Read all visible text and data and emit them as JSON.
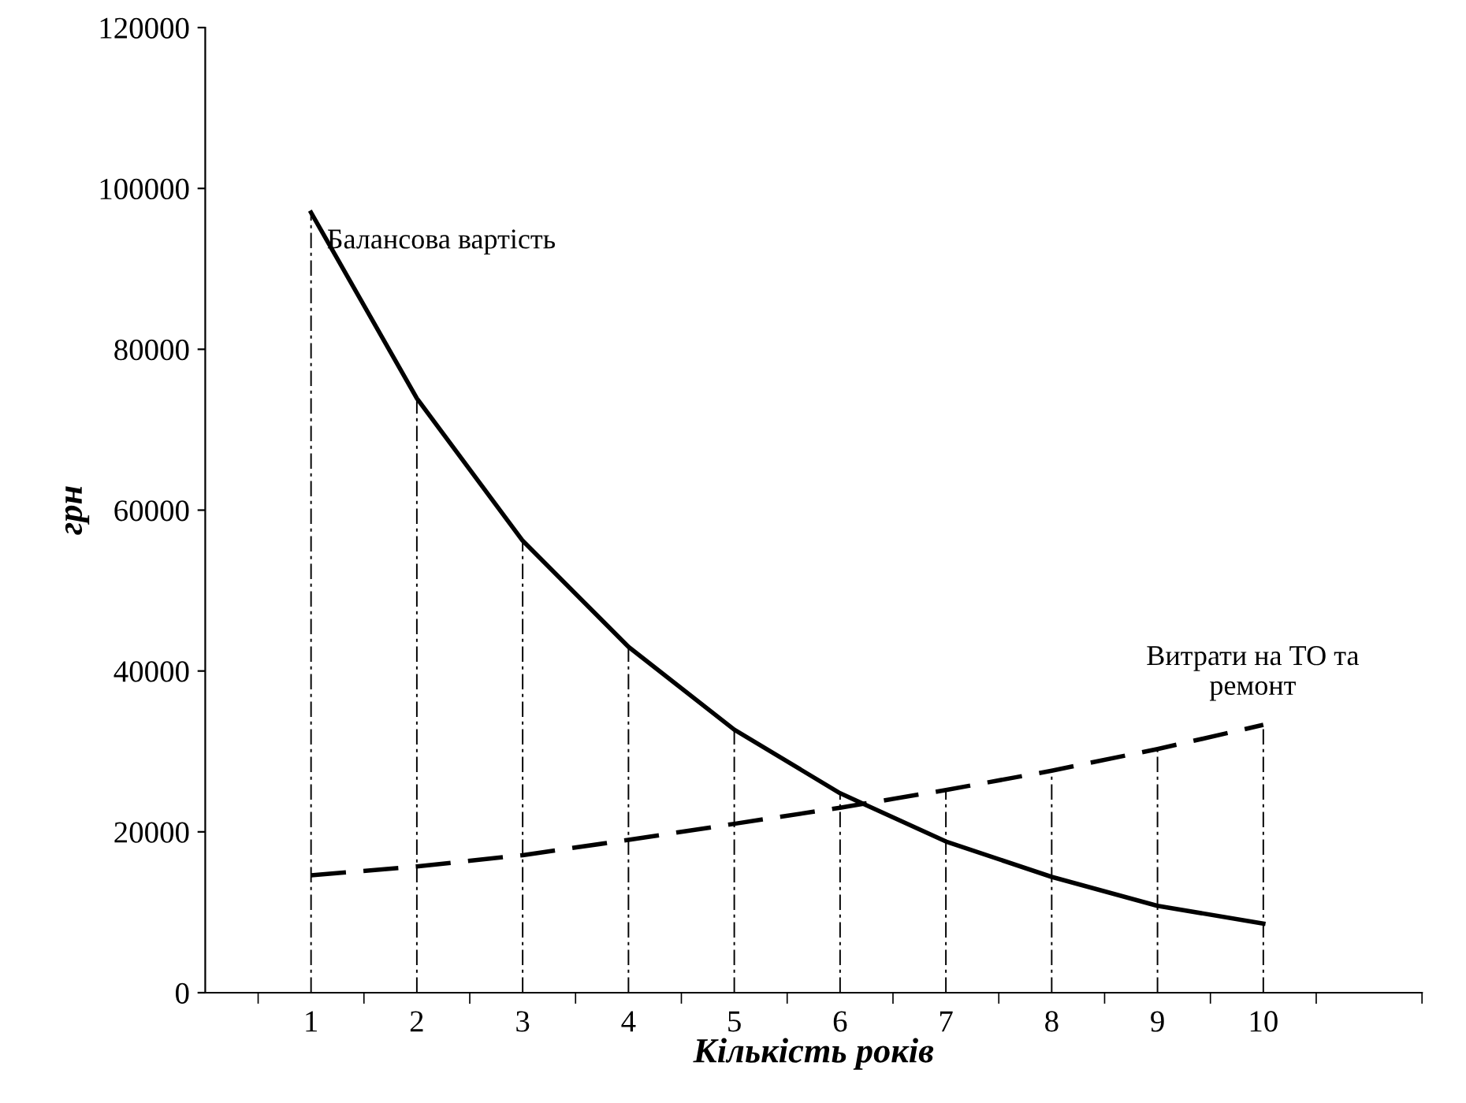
{
  "chart_data": {
    "type": "line",
    "xlabel": "Кількість років",
    "ylabel": "грн",
    "categories": [
      "1",
      "2",
      "3",
      "4",
      "5",
      "6",
      "7",
      "8",
      "9",
      "10"
    ],
    "series": [
      {
        "color": "#000000",
        "line_style": "solid",
        "values": [
          97000,
          73900,
          56200,
          43000,
          32700,
          24800,
          18800,
          14400,
          10800,
          8600
        ]
      },
      {
        "color": "#000000",
        "line_style": "dashed",
        "values": [
          14600,
          15700,
          17100,
          19000,
          21000,
          23000,
          25200,
          27600,
          30300,
          33300
        ]
      }
    ],
    "ylim": [
      0,
      120000
    ],
    "yticks": [
      0,
      20000,
      40000,
      60000,
      80000,
      100000,
      120000
    ],
    "annotations": [
      {
        "text": "Балансова вартість",
        "x": "1",
        "y": 97000
      },
      {
        "text": "Витрати на ТО та\nремонт",
        "x": "10",
        "y": 33300
      }
    ],
    "ref_lines": [
      {
        "axis": "x",
        "value": "1",
        "line_style": "dashed"
      },
      {
        "axis": "x",
        "value": "2",
        "line_style": "dashed"
      },
      {
        "axis": "x",
        "value": "3",
        "line_style": "dashed"
      },
      {
        "axis": "x",
        "value": "4",
        "line_style": "dashed"
      },
      {
        "axis": "x",
        "value": "5",
        "line_style": "dashed"
      },
      {
        "axis": "x",
        "value": "6",
        "line_style": "dashed"
      },
      {
        "axis": "x",
        "value": "7",
        "line_style": "dashed"
      },
      {
        "axis": "x",
        "value": "8",
        "line_style": "dashed"
      },
      {
        "axis": "x",
        "value": "9",
        "line_style": "dashed"
      },
      {
        "axis": "x",
        "value": "10",
        "line_style": "dashed"
      }
    ],
    "legend": false,
    "marker": "none"
  }
}
